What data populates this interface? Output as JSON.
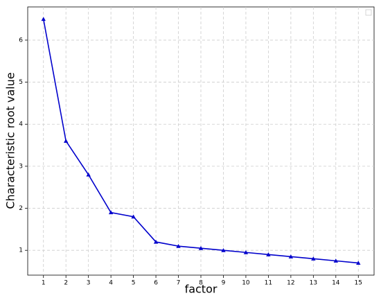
{
  "chart_data": {
    "type": "line",
    "x_label": "factor",
    "y_label": "Characteristic root value",
    "x": [
      1,
      2,
      3,
      4,
      5,
      6,
      7,
      8,
      9,
      10,
      11,
      12,
      13,
      14,
      15
    ],
    "series": [
      {
        "color": "#0000cc",
        "marker": "triangle",
        "values": [
          6.5,
          3.6,
          2.8,
          1.9,
          1.8,
          1.2,
          1.1,
          1.05,
          1.0,
          0.95,
          0.9,
          0.85,
          0.8,
          0.75,
          0.7
        ]
      }
    ],
    "xlim": [
      0.3,
      15.7
    ],
    "ylim": [
      0.41,
      6.79
    ],
    "xticks": [
      1,
      2,
      3,
      4,
      5,
      6,
      7,
      8,
      9,
      10,
      11,
      12,
      13,
      14,
      15
    ],
    "yticks": [
      1,
      2,
      3,
      4,
      5,
      6
    ],
    "grid": true
  }
}
